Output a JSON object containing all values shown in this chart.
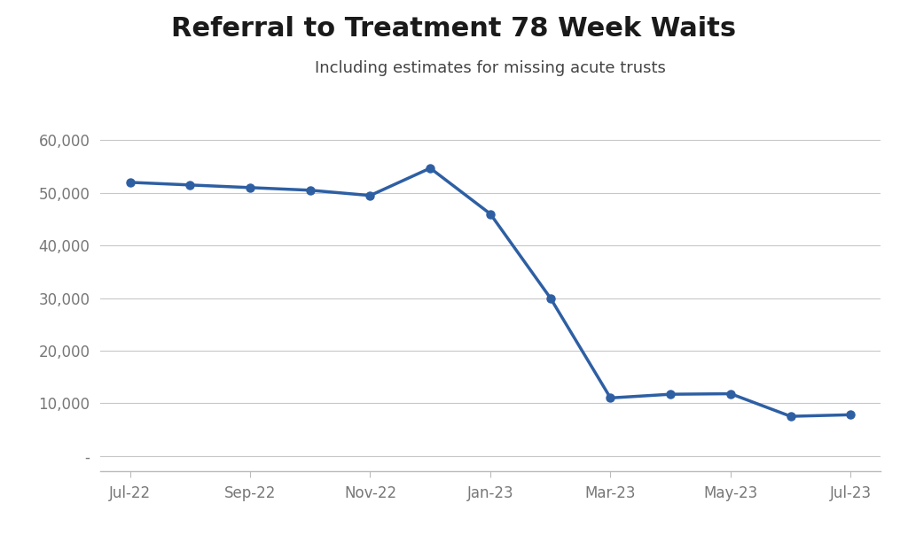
{
  "title": "Referral to Treatment 78 Week Waits",
  "subtitle": "Including estimates for missing acute trusts",
  "line_color": "#2E5FA3",
  "marker_color": "#2E5FA3",
  "background_color": "#FFFFFF",
  "x_positions": [
    0,
    1,
    2,
    3,
    4,
    5,
    6,
    7,
    8,
    9,
    10,
    11,
    12
  ],
  "y_values": [
    52000,
    51500,
    51000,
    50500,
    49500,
    54700,
    46000,
    30000,
    11000,
    11700,
    11800,
    7500,
    7800
  ],
  "ytick_values": [
    0,
    10000,
    20000,
    30000,
    40000,
    50000,
    60000
  ],
  "ytick_labels": [
    "-",
    "10,000",
    "20,000",
    "30,000",
    "40,000",
    "50,000",
    "60,000"
  ],
  "xtick_positions": [
    0,
    2,
    4,
    6,
    8,
    10,
    12
  ],
  "xtick_labels": [
    "Jul-22",
    "Sep-22",
    "Nov-22",
    "Jan-23",
    "Mar-23",
    "May-23",
    "Jul-23"
  ],
  "ylim": [
    -3000,
    64000
  ],
  "xlim": [
    -0.5,
    12.5
  ],
  "title_fontsize": 22,
  "subtitle_fontsize": 13,
  "tick_fontsize": 12,
  "grid_color": "#C8C8C8",
  "spine_color": "#BBBBBB",
  "tick_color": "#777777"
}
